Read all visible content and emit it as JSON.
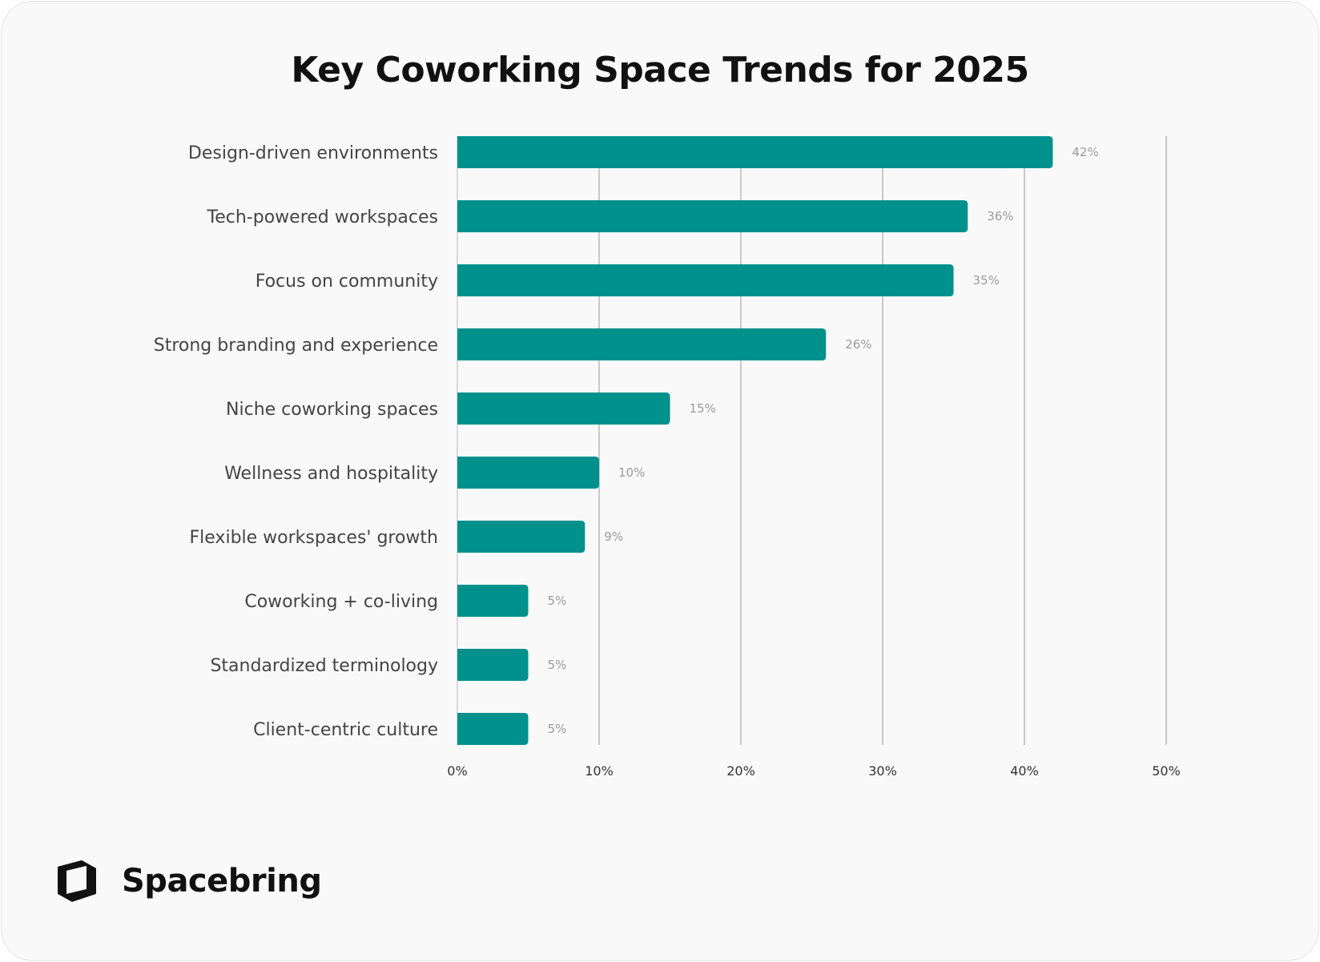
{
  "chart_data": {
    "type": "bar",
    "orientation": "horizontal",
    "title": "Key Coworking Space Trends for 2025",
    "categories": [
      "Design-driven environments",
      "Tech-powered workspaces",
      "Focus on community",
      "Strong branding and experience",
      "Niche coworking spaces",
      "Wellness and hospitality",
      "Flexible workspaces' growth",
      "Coworking + co-living",
      "Standardized terminology",
      "Client-centric culture"
    ],
    "values": [
      42,
      36,
      35,
      26,
      15,
      10,
      9,
      5,
      5,
      5
    ],
    "value_labels": [
      "42%",
      "36%",
      "35%",
      "26%",
      "15%",
      "10%",
      "9%",
      "5%",
      "5%",
      "5%"
    ],
    "xlim": [
      0,
      50
    ],
    "xticks": [
      0,
      10,
      20,
      30,
      40,
      50
    ],
    "xtick_labels": [
      "0%",
      "10%",
      "20%",
      "30%",
      "40%",
      "50%"
    ],
    "grid": true,
    "bar_color": "#00918c"
  },
  "brand": {
    "name": "Spacebring",
    "icon": "spacebring-logo-icon"
  }
}
